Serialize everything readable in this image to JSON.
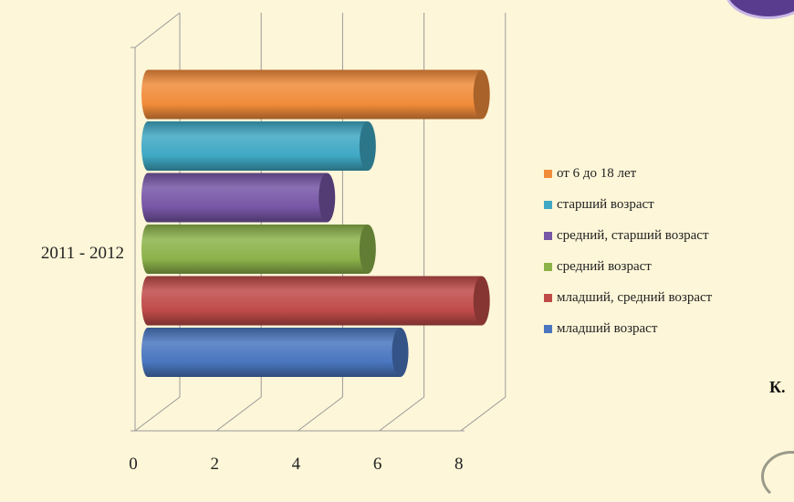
{
  "chart_data": {
    "type": "bar",
    "orientation": "horizontal",
    "style": "3d-cylinder",
    "categories": [
      "2011 - 2012"
    ],
    "series": [
      {
        "name": "младший возраст",
        "values": [
          6.2
        ],
        "color": "#4a76bf"
      },
      {
        "name": "младший, средний возраст",
        "values": [
          8.2
        ],
        "color": "#bf4b49"
      },
      {
        "name": "средний возраст",
        "values": [
          5.4
        ],
        "color": "#8cb24a"
      },
      {
        "name": "средний, старший возраст",
        "values": [
          4.4
        ],
        "color": "#7656a6"
      },
      {
        "name": "старший возраст",
        "values": [
          5.4
        ],
        "color": "#3fa8c4"
      },
      {
        "name": "от 6 до 18 лет",
        "values": [
          8.2
        ],
        "color": "#f18c3a"
      }
    ],
    "x_ticks": [
      "0",
      "2",
      "4",
      "6",
      "8"
    ],
    "xlim": [
      0,
      8
    ],
    "legend_position": "right",
    "grid": true
  },
  "side_text": "К."
}
